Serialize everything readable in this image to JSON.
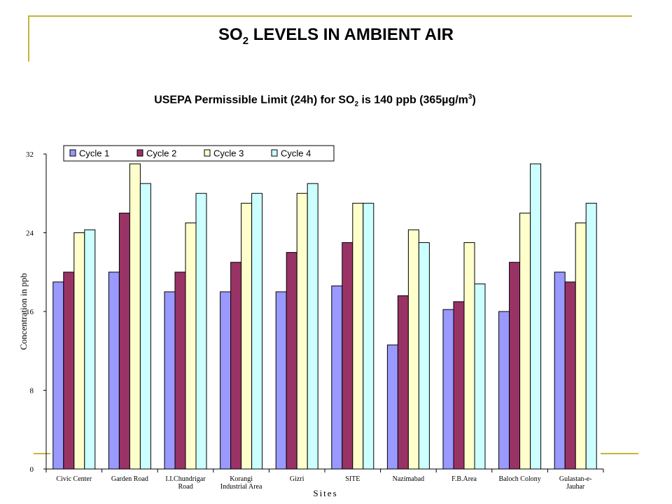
{
  "slide": {
    "title_main": "SO",
    "title_sub": "2",
    "title_rest": " LEVELS IN AMBIENT AIR",
    "subtitle_a": "USEPA Permissible Limit (24h) for SO",
    "subtitle_sub": "2",
    "subtitle_b": " is 140 ppb (365",
    "subtitle_mu": "µ",
    "subtitle_c": "g/m",
    "subtitle_sup": "3",
    "subtitle_d": ")",
    "accent_color": "#c8b33a"
  },
  "chart_data": {
    "type": "bar",
    "xlabel": "Sites",
    "ylabel": "Concentration in ppb",
    "ylim": [
      0,
      32
    ],
    "yticks": [
      "0",
      "8",
      "16",
      "24",
      "32"
    ],
    "legend_position": "top",
    "categories": [
      [
        "Civic Center"
      ],
      [
        "Garden Road"
      ],
      [
        "I.I.Chundrigar",
        "Road"
      ],
      [
        "Korangi",
        "Industrial Area"
      ],
      [
        "Gizri"
      ],
      [
        "SITE"
      ],
      [
        "Nazimabad"
      ],
      [
        "F.B.Area"
      ],
      [
        "Baloch Colony"
      ],
      [
        "Gulastan-e-",
        "Jauhar"
      ]
    ],
    "series": [
      {
        "name": "Cycle 1",
        "color": "#9999ff",
        "values": [
          19,
          20,
          18,
          18,
          18,
          18.6,
          12.6,
          16.2,
          16,
          20
        ]
      },
      {
        "name": "Cycle 2",
        "color": "#993366",
        "values": [
          20,
          26,
          20,
          21,
          22,
          23,
          17.6,
          17,
          21,
          19
        ]
      },
      {
        "name": "Cycle 3",
        "color": "#ffffcc",
        "values": [
          24,
          31,
          25,
          27,
          28,
          27,
          24.3,
          23,
          26,
          25
        ]
      },
      {
        "name": "Cycle 4",
        "color": "#ccffff",
        "values": [
          24.3,
          29,
          28,
          28,
          29,
          27,
          23,
          18.8,
          31,
          27
        ]
      }
    ]
  }
}
